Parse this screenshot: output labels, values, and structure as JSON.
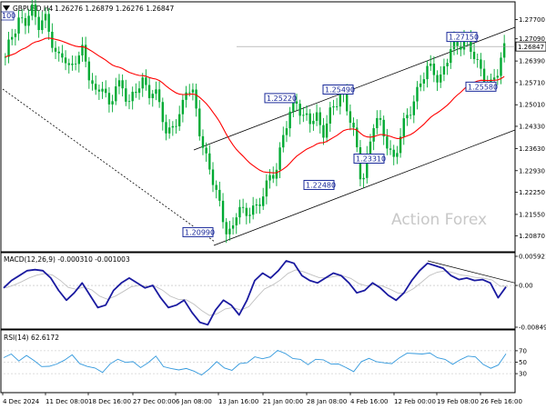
{
  "header": {
    "symbol": "GBPUSD,H4",
    "ohlc": "1.26276 1.26879 1.26276 1.26847",
    "corner_label": "100",
    "dropdown_icon": "triangle-down-icon"
  },
  "watermark": "Action Forex",
  "colors": {
    "candle": "#00aa33",
    "ma": "#ff0000",
    "channel": "#000000",
    "macd": "#1a1aa0",
    "macd_signal": "#c0c0c0",
    "rsi": "#3399dd",
    "label": "#1a2a9a",
    "watermark": "#c8c8c8"
  },
  "panels": {
    "macd_label": "MACD(12,26,9) -0.000310 -0.001003",
    "rsi_label": "RSI(14) 62.6172"
  },
  "chart_data": [
    {
      "type": "candlestick",
      "title": "GBPUSD,H4",
      "ylim": [
        1.204,
        1.282
      ],
      "yticks": [
        "1.27700",
        "1.27090",
        "1.26390",
        "1.25710",
        "1.25010",
        "1.24330",
        "1.23630",
        "1.22930",
        "1.22250",
        "1.21550",
        "1.20870"
      ],
      "current_price": "1.26847",
      "xticks": [
        "4 Dec 2024",
        "11 Dec 08:00",
        "18 Dec 16:00",
        "27 Dec 00:00",
        "6 Jan 08:00",
        "13 Jan 16:00",
        "21 Jan 00:00",
        "28 Jan 08:00",
        "4 Feb 16:00",
        "12 Feb 00:00",
        "19 Feb 08:00",
        "26 Feb 16:00"
      ],
      "annotations": [
        {
          "text": "1.27150",
          "value": 1.2715
        },
        {
          "text": "1.25220",
          "value": 1.2522
        },
        {
          "text": "1.25490",
          "value": 1.2549
        },
        {
          "text": "1.25580",
          "value": 1.2558
        },
        {
          "text": "1.22480",
          "value": 1.2248
        },
        {
          "text": "1.23310",
          "value": 1.2331
        },
        {
          "text": "1.20990",
          "value": 1.2099
        }
      ],
      "close_path": [
        1.264,
        1.272,
        1.278,
        1.275,
        1.28,
        1.276,
        1.279,
        1.27,
        1.264,
        1.268,
        1.26,
        1.264,
        1.268,
        1.26,
        1.252,
        1.256,
        1.25,
        1.257,
        1.254,
        1.251,
        1.255,
        1.258,
        1.252,
        1.256,
        1.25,
        1.238,
        1.244,
        1.248,
        1.256,
        1.252,
        1.242,
        1.234,
        1.226,
        1.218,
        1.212,
        1.2099,
        1.218,
        1.214,
        1.22,
        1.216,
        1.223,
        1.228,
        1.232,
        1.24,
        1.248,
        1.2522,
        1.246,
        1.244,
        1.247,
        1.242,
        1.246,
        1.25,
        1.2549,
        1.248,
        1.238,
        1.2248,
        1.236,
        1.246,
        1.242,
        1.238,
        1.2331,
        1.24,
        1.246,
        1.252,
        1.257,
        1.26,
        1.262,
        1.258,
        1.263,
        1.268,
        1.27,
        1.2715,
        1.266,
        1.262,
        1.26,
        1.2558,
        1.26,
        1.2685
      ]
    },
    {
      "type": "line",
      "title": "MACD(12,26,9) -0.000310 -0.001003",
      "ylim": [
        -0.00849,
        0.005921
      ],
      "yticks": [
        "0.005921",
        "0.00",
        "-0.00849"
      ],
      "series": [
        {
          "name": "MACD",
          "values": [
            -0.0005,
            0.001,
            0.002,
            0.003,
            0.0032,
            0.003,
            0.0015,
            -0.001,
            -0.003,
            -0.0015,
            0.0005,
            -0.002,
            -0.0045,
            -0.004,
            -0.001,
            0.0005,
            0.0015,
            0.0005,
            -0.0005,
            0.0,
            -0.0025,
            -0.0045,
            -0.004,
            -0.003,
            -0.0055,
            -0.0075,
            -0.008,
            -0.005,
            -0.003,
            -0.004,
            -0.006,
            -0.003,
            0.001,
            0.0025,
            0.0015,
            0.003,
            0.005,
            0.0045,
            0.002,
            0.001,
            0.0005,
            0.0015,
            0.0025,
            0.002,
            0.0005,
            -0.0015,
            -0.001,
            0.0005,
            -0.0005,
            -0.002,
            -0.003,
            -0.0015,
            0.001,
            0.003,
            0.0045,
            0.004,
            0.0035,
            0.002,
            0.0012,
            0.0015,
            0.001,
            0.0012,
            0.0005,
            -0.0025,
            -0.0003
          ]
        }
      ]
    },
    {
      "type": "line",
      "title": "RSI(14) 62.6172",
      "ylim": [
        0,
        100
      ],
      "yticks": [
        "70",
        "50",
        "30"
      ],
      "series": [
        {
          "name": "RSI",
          "values": [
            58,
            62,
            55,
            60,
            52,
            45,
            40,
            48,
            55,
            60,
            50,
            42,
            38,
            35,
            45,
            55,
            52,
            48,
            42,
            50,
            58,
            45,
            38,
            35,
            42,
            32,
            28,
            40,
            48,
            42,
            36,
            45,
            52,
            58,
            55,
            62,
            68,
            66,
            58,
            52,
            48,
            55,
            52,
            50,
            45,
            40,
            36,
            48,
            58,
            52,
            46,
            50,
            57,
            64,
            68,
            62,
            66,
            60,
            52,
            48,
            55,
            58,
            62,
            45,
            38,
            48,
            62
          ]
        }
      ]
    }
  ]
}
